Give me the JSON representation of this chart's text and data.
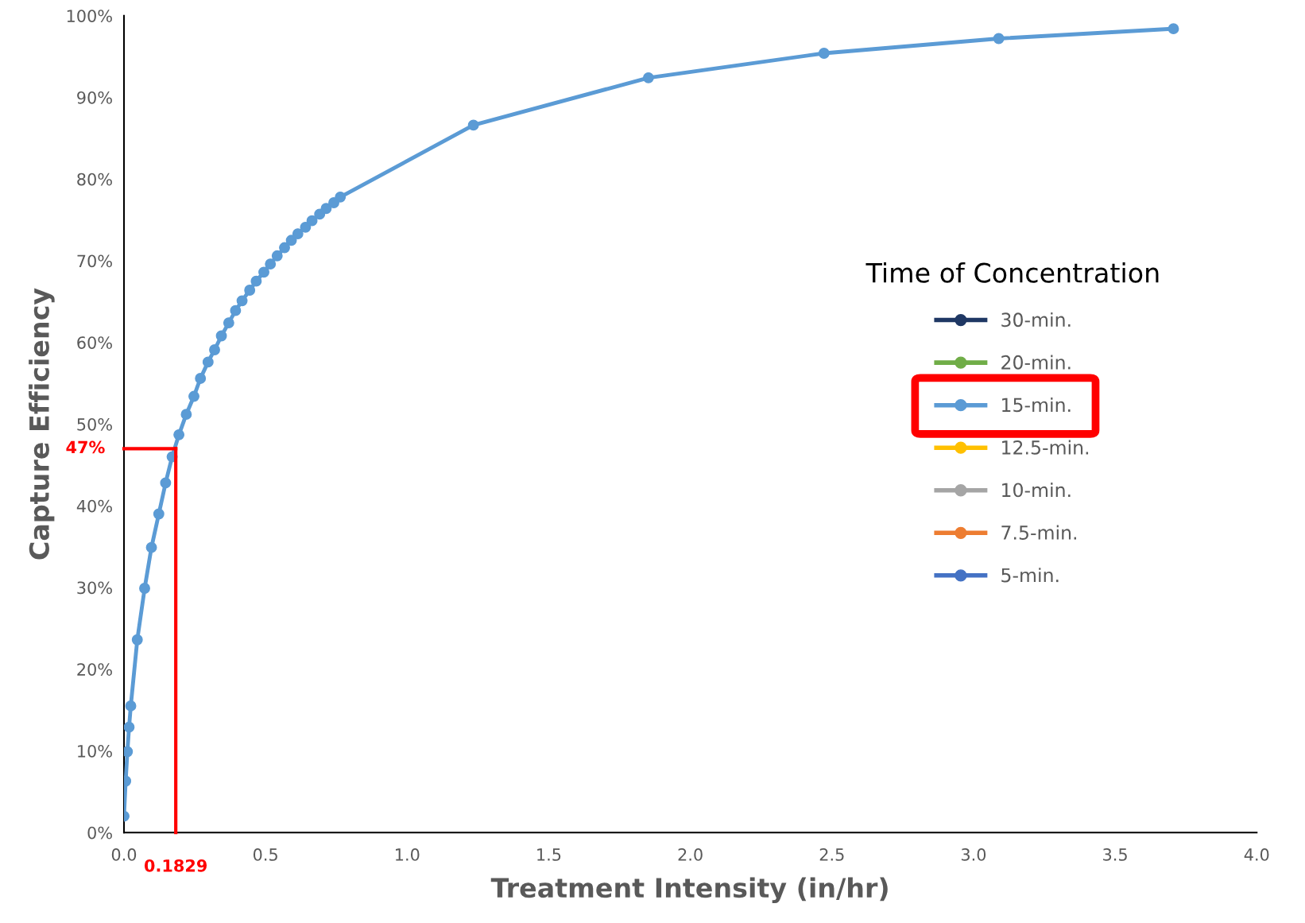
{
  "chart_data": {
    "type": "line",
    "xlabel": "Treatment Intensity (in/hr)",
    "ylabel": "Capture Efficiency",
    "legend_title": "Time of Concentration",
    "xlim": [
      0,
      4.0
    ],
    "xticks": [
      {
        "value": 0,
        "label": "0.0"
      },
      0.5,
      {
        "value": 1,
        "label": "1.0"
      },
      1.5,
      {
        "value": 2,
        "label": "2.0"
      },
      2.5,
      {
        "value": 3,
        "label": "3.0"
      },
      3.5,
      {
        "value": 4,
        "label": "4.0"
      }
    ],
    "ylim": [
      0,
      100
    ],
    "yticks": [
      {
        "value": 0,
        "label": "0%"
      },
      {
        "value": 10,
        "label": "10%"
      },
      {
        "value": 20,
        "label": "20%"
      },
      {
        "value": 30,
        "label": "30%"
      },
      {
        "value": 40,
        "label": "40%"
      },
      {
        "value": 50,
        "label": "50%"
      },
      {
        "value": 60,
        "label": "60%"
      },
      {
        "value": 70,
        "label": "70%"
      },
      {
        "value": 80,
        "label": "80%"
      },
      {
        "value": 90,
        "label": "90%"
      },
      {
        "value": 100,
        "label": "100%"
      }
    ],
    "grid": false,
    "legend": "right",
    "marker": "circle",
    "line_style": "solid",
    "series": [
      {
        "name": "30-min.",
        "color": "#1f3864"
      },
      {
        "name": "20-min.",
        "color": "#70ad47"
      },
      {
        "name": "15-min.",
        "color": "#5b9bd5",
        "x": [
          0,
          0.006,
          0.012,
          0.018,
          0.024,
          0.047,
          0.073,
          0.097,
          0.123,
          0.147,
          0.17,
          0.194,
          0.22,
          0.247,
          0.27,
          0.297,
          0.32,
          0.344,
          0.37,
          0.394,
          0.417,
          0.444,
          0.467,
          0.494,
          0.517,
          0.541,
          0.567,
          0.591,
          0.614,
          0.641,
          0.664,
          0.691,
          0.714,
          0.741,
          0.764,
          1.234,
          1.852,
          2.472,
          3.089,
          3.706
        ],
        "values": [
          2.0,
          6.3,
          9.9,
          12.9,
          15.5,
          23.6,
          29.9,
          34.9,
          39.0,
          42.8,
          46.0,
          48.7,
          51.2,
          53.4,
          55.6,
          57.6,
          59.1,
          60.8,
          62.4,
          63.9,
          65.1,
          66.4,
          67.5,
          68.6,
          69.6,
          70.6,
          71.6,
          72.5,
          73.3,
          74.1,
          74.9,
          75.7,
          76.4,
          77.1,
          77.8,
          86.6,
          92.4,
          95.4,
          97.2,
          98.4
        ]
      },
      {
        "name": "12.5-min.",
        "color": "#ffc000"
      },
      {
        "name": "10-min.",
        "color": "#a5a5a5"
      },
      {
        "name": "7.5-min.",
        "color": "#ed7d31"
      },
      {
        "name": "5-min.",
        "color": "#4472c4"
      }
    ],
    "ref_lines": [
      {
        "axis": "x",
        "value": 0.1829,
        "label": "0.1829",
        "color": "#ff0000"
      },
      {
        "axis": "y",
        "value": 47,
        "label": "47%",
        "color": "#ff0000"
      }
    ]
  }
}
